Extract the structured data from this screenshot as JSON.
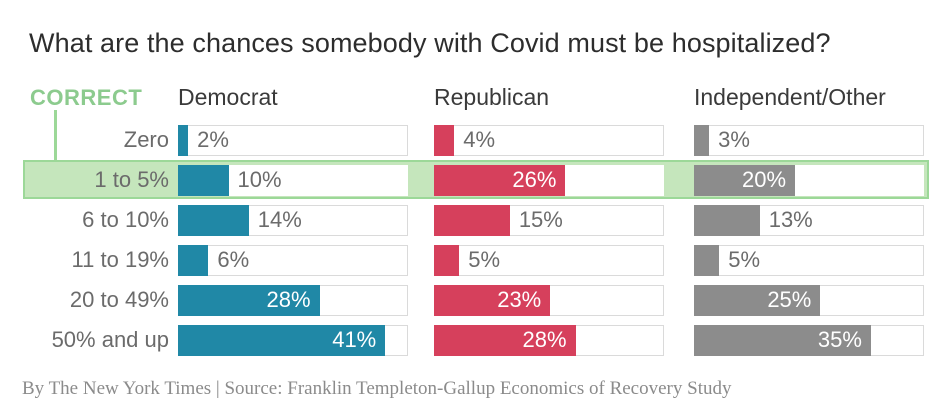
{
  "title": "What are the chances somebody with Covid must be hospitalized?",
  "correct_label": "CORRECT",
  "footer": "By The New York Times | Source: Franklin Templeton-Gallup Economics of Recovery Study",
  "colors": {
    "democrat": "#2088a6",
    "republican": "#d6405c",
    "independent": "#8c8c8c",
    "highlight_fill": "#c5e6bc",
    "highlight_border": "#9cd898",
    "correct_green": "#8ccb8e",
    "cell_border": "#dadada",
    "text_dark": "#2d2d2d",
    "text_gray": "#6b6b6b"
  },
  "chart_data": {
    "type": "bar",
    "title": "What are the chances somebody with Covid must be hospitalized?",
    "categories": [
      "Zero",
      "1 to 5%",
      "6 to 10%",
      "11 to 19%",
      "20 to 49%",
      "50% and up"
    ],
    "series": [
      {
        "name": "Democrat",
        "color": "#2088a6",
        "values": [
          2,
          10,
          14,
          6,
          28,
          41
        ]
      },
      {
        "name": "Republican",
        "color": "#d6405c",
        "values": [
          4,
          26,
          15,
          5,
          23,
          28
        ]
      },
      {
        "name": "Independent/Other",
        "color": "#8c8c8c",
        "values": [
          3,
          20,
          13,
          5,
          25,
          35
        ]
      }
    ],
    "value_suffix": "%",
    "xlim": [
      0,
      45.5
    ],
    "correct_answer": "1 to 5%",
    "correct_index": 1,
    "inside_label_min": 20,
    "grid": "off",
    "legend_position": "column-headers"
  }
}
